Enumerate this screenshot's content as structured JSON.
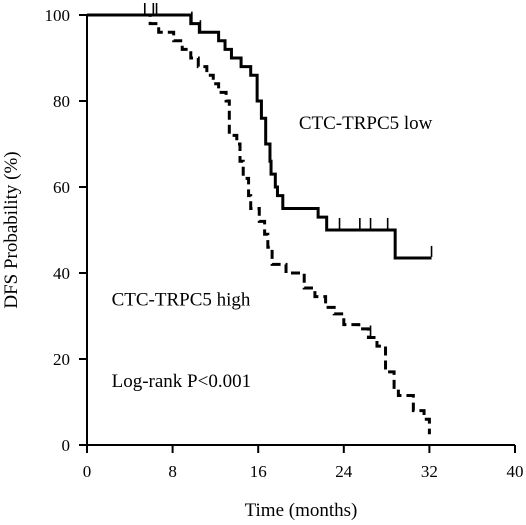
{
  "chart_data": {
    "type": "line",
    "subtype": "kaplan-meier",
    "title": "",
    "xlabel": "Time (months)",
    "ylabel": "DFS  Probability  (%)",
    "xlim": [
      0,
      40
    ],
    "ylim": [
      0,
      100
    ],
    "xticks": [
      0,
      8,
      16,
      24,
      32,
      40
    ],
    "yticks": [
      0,
      20,
      40,
      60,
      80,
      100
    ],
    "grid": false,
    "legend": "none",
    "series": [
      {
        "name": "CTC-TRPC5 low",
        "line_style": "solid",
        "color": "#000000",
        "steps": [
          [
            0,
            100
          ],
          [
            8.1,
            100
          ],
          [
            9.7,
            98
          ],
          [
            10.5,
            96
          ],
          [
            12.3,
            94
          ],
          [
            12.9,
            92
          ],
          [
            13.5,
            90
          ],
          [
            14.4,
            88
          ],
          [
            15.3,
            86
          ],
          [
            15.9,
            80
          ],
          [
            16.3,
            76
          ],
          [
            16.7,
            70
          ],
          [
            17.1,
            66
          ],
          [
            17.2,
            63
          ],
          [
            17.6,
            60
          ],
          [
            17.8,
            58
          ],
          [
            18.3,
            55
          ],
          [
            21.6,
            53
          ],
          [
            22.4,
            50
          ],
          [
            28.8,
            43.5
          ],
          [
            32.2,
            43.5
          ]
        ],
        "censor_x": [
          5.4,
          6.2,
          6.5,
          9.8,
          10.6,
          23.6,
          25.5,
          26.5,
          28.1,
          32.2
        ]
      },
      {
        "name": "CTC-TRPC5 high",
        "line_style": "dashed",
        "color": "#000000",
        "steps": [
          [
            0,
            100
          ],
          [
            5.9,
            98
          ],
          [
            6.7,
            96
          ],
          [
            8.1,
            94
          ],
          [
            8.9,
            92
          ],
          [
            9.7,
            90
          ],
          [
            10.4,
            88
          ],
          [
            11.2,
            86
          ],
          [
            11.8,
            84
          ],
          [
            12.3,
            82
          ],
          [
            13.0,
            80
          ],
          [
            13.3,
            72
          ],
          [
            14.0,
            70
          ],
          [
            14.3,
            66
          ],
          [
            14.6,
            62
          ],
          [
            15.1,
            58
          ],
          [
            15.3,
            55
          ],
          [
            16.1,
            52
          ],
          [
            16.6,
            49
          ],
          [
            16.9,
            46
          ],
          [
            17.3,
            42
          ],
          [
            18.6,
            40
          ],
          [
            20.3,
            36.5
          ],
          [
            21.3,
            34.5
          ],
          [
            22.3,
            32
          ],
          [
            23.1,
            30.5
          ],
          [
            24.0,
            28
          ],
          [
            25.4,
            27
          ],
          [
            26.3,
            25
          ],
          [
            27.1,
            23
          ],
          [
            27.9,
            17
          ],
          [
            28.7,
            13
          ],
          [
            29.1,
            11.5
          ],
          [
            30.5,
            8
          ],
          [
            31.5,
            6
          ],
          [
            32.0,
            2.5
          ]
        ],
        "censor_x": [
          26.5
        ]
      }
    ],
    "annotations": [
      {
        "text": "CTC-TRPC5 low",
        "anchor_x": 19.8,
        "anchor_y": 73.5
      },
      {
        "text": "CTC-TRPC5 high",
        "anchor_x": 2.3,
        "anchor_y": 32.5
      },
      {
        "text": "Log-rank  P<0.001",
        "anchor_x": 2.3,
        "anchor_y": 13.5
      }
    ]
  }
}
